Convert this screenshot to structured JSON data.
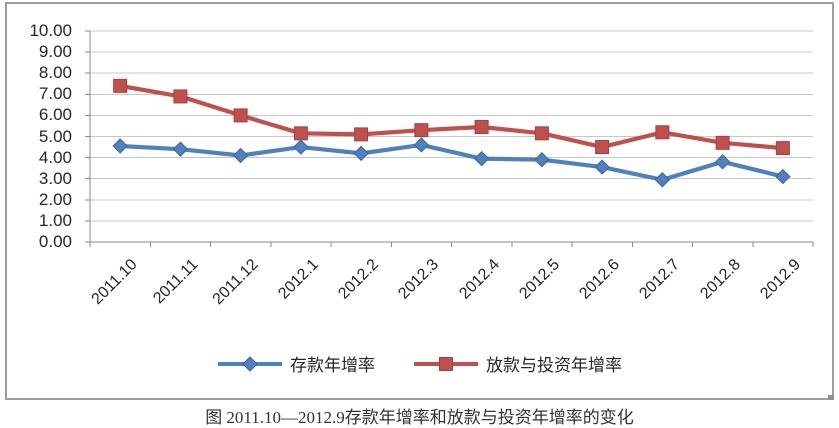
{
  "page": {
    "background": "#ffffff",
    "frame_border_color": "#9d9d9d"
  },
  "chart_data": {
    "type": "line",
    "title": "",
    "categories": [
      "2011.10",
      "2011.11",
      "2011.12",
      "2012.1",
      "2012.2",
      "2012.3",
      "2012.4",
      "2012.5",
      "2012.6",
      "2012.7",
      "2012.8",
      "2012.9"
    ],
    "series": [
      {
        "name": "存款年增率",
        "marker": "diamond",
        "color": "#4F81BD",
        "marker_edge": "#3A679C",
        "values": [
          4.55,
          4.4,
          4.1,
          4.5,
          4.2,
          4.6,
          3.95,
          3.9,
          3.55,
          2.95,
          3.8,
          3.1
        ]
      },
      {
        "name": "放款与投资年增率",
        "marker": "square",
        "color": "#C0504D",
        "marker_edge": "#9E4340",
        "values": [
          7.4,
          6.9,
          6.0,
          5.15,
          5.1,
          5.3,
          5.45,
          5.15,
          4.5,
          5.2,
          4.7,
          4.45
        ]
      }
    ],
    "ylim": [
      0,
      10
    ],
    "ytick_step": 1,
    "ytick_labels": [
      "0.00",
      "1.00",
      "2.00",
      "3.00",
      "4.00",
      "5.00",
      "6.00",
      "7.00",
      "8.00",
      "9.00",
      "10.00"
    ],
    "grid": "horizontal",
    "legend_position": "bottom",
    "gridline_color": "#C8C8C8",
    "axis_color": "#8A8A8A",
    "text_color": "#262626"
  },
  "caption": "图 2011.10—2012.9存款年增率和放款与投资年增率的变化"
}
